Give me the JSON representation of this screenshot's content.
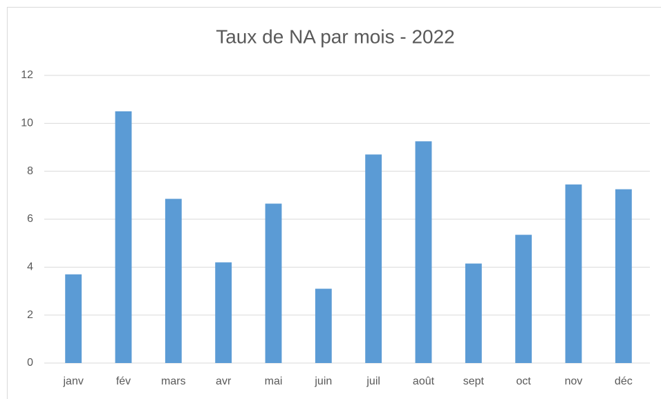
{
  "chart_data": {
    "type": "bar",
    "title": "Taux de NA par mois - 2022",
    "categories": [
      "janv",
      "fév",
      "mars",
      "avr",
      "mai",
      "juin",
      "juil",
      "août",
      "sept",
      "oct",
      "nov",
      "déc"
    ],
    "values": [
      3.7,
      10.5,
      6.85,
      4.2,
      6.65,
      3.1,
      8.7,
      9.25,
      4.15,
      5.35,
      7.45,
      7.25
    ],
    "color": "#5b9bd5",
    "ylim": [
      0,
      12
    ],
    "yticks": [
      0,
      2,
      4,
      6,
      8,
      10,
      12
    ],
    "grid": true
  }
}
